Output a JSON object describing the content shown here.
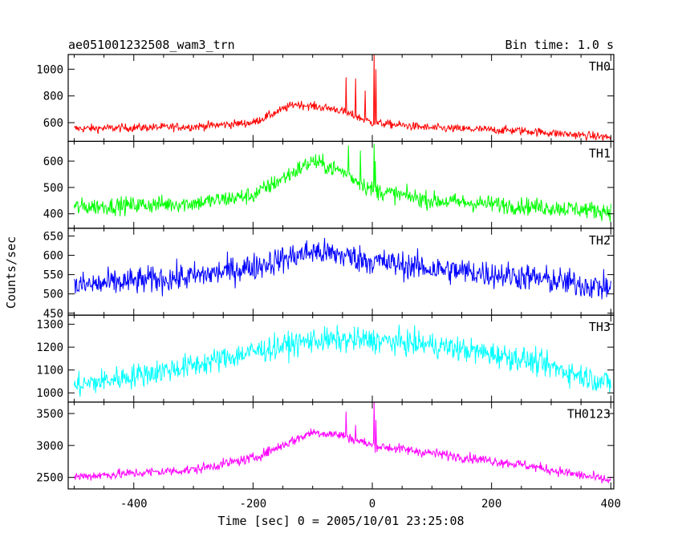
{
  "chart_data": {
    "type": "line",
    "title": "ae051001232508_wam3_trn",
    "bin_time_label": "Bin time: 1.0 s",
    "xlabel": "Time [sec] 0 = 2005/10/01 23:25:08",
    "ylabel": "Counts/sec",
    "xlim": [
      -510,
      405
    ],
    "x_ticks": [
      -400,
      -200,
      0,
      200,
      400
    ],
    "grid": false,
    "panels": [
      {
        "name": "TH0",
        "color": "#ff0000",
        "ylim": [
          460,
          1110
        ],
        "y_ticks": [
          600,
          800,
          1000
        ],
        "profile": [
          [
            -500,
            555
          ],
          [
            -300,
            570
          ],
          [
            -200,
            600
          ],
          [
            -130,
            740
          ],
          [
            -60,
            700
          ],
          [
            0,
            600
          ],
          [
            100,
            560
          ],
          [
            250,
            540
          ],
          [
            400,
            490
          ]
        ],
        "noise": 22,
        "spikes": [
          [
            -44,
            940
          ],
          [
            -28,
            930
          ],
          [
            -12,
            840
          ],
          [
            3,
            1110
          ],
          [
            6,
            1000
          ]
        ]
      },
      {
        "name": "TH1",
        "color": "#00ff00",
        "ylim": [
          345,
          675
        ],
        "y_ticks": [
          400,
          500,
          600
        ],
        "profile": [
          [
            -500,
            425
          ],
          [
            -300,
            440
          ],
          [
            -200,
            470
          ],
          [
            -100,
            600
          ],
          [
            -50,
            560
          ],
          [
            0,
            490
          ],
          [
            100,
            450
          ],
          [
            250,
            430
          ],
          [
            400,
            410
          ]
        ],
        "noise": 23,
        "spikes": [
          [
            -40,
            660
          ],
          [
            -20,
            640
          ],
          [
            3,
            665
          ],
          [
            5,
            600
          ]
        ]
      },
      {
        "name": "TH2",
        "color": "#0000ff",
        "ylim": [
          445,
          670
        ],
        "y_ticks": [
          450,
          500,
          550,
          600,
          650
        ],
        "profile": [
          [
            -500,
            520
          ],
          [
            -300,
            545
          ],
          [
            -200,
            570
          ],
          [
            -100,
            610
          ],
          [
            -50,
            600
          ],
          [
            0,
            585
          ],
          [
            100,
            565
          ],
          [
            250,
            545
          ],
          [
            400,
            515
          ]
        ],
        "noise": 25,
        "spikes": []
      },
      {
        "name": "TH3",
        "color": "#00ffff",
        "ylim": [
          960,
          1340
        ],
        "y_ticks": [
          1000,
          1100,
          1200,
          1300
        ],
        "profile": [
          [
            -500,
            1030
          ],
          [
            -300,
            1120
          ],
          [
            -200,
            1180
          ],
          [
            -100,
            1230
          ],
          [
            0,
            1230
          ],
          [
            100,
            1210
          ],
          [
            250,
            1150
          ],
          [
            400,
            1040
          ]
        ],
        "noise": 38,
        "spikes": []
      },
      {
        "name": "TH0123",
        "color": "#ff00ff",
        "ylim": [
          2320,
          3680
        ],
        "y_ticks": [
          2500,
          3000,
          3500
        ],
        "profile": [
          [
            -500,
            2510
          ],
          [
            -300,
            2620
          ],
          [
            -200,
            2800
          ],
          [
            -100,
            3210
          ],
          [
            -50,
            3160
          ],
          [
            0,
            3000
          ],
          [
            100,
            2880
          ],
          [
            250,
            2700
          ],
          [
            400,
            2450
          ]
        ],
        "noise": 55,
        "spikes": [
          [
            -44,
            3530
          ],
          [
            -28,
            3320
          ],
          [
            3,
            3680
          ],
          [
            6,
            3400
          ]
        ]
      }
    ]
  }
}
